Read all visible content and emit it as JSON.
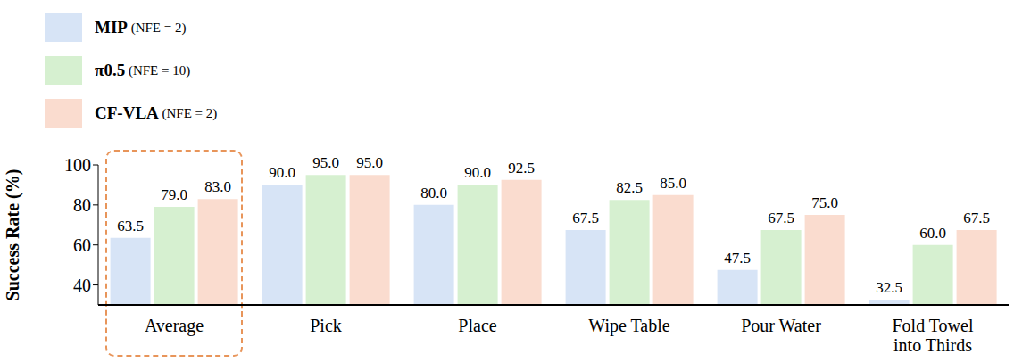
{
  "chart_data": {
    "type": "bar",
    "ylabel": "Success Rate (%)",
    "categories": [
      "Average",
      "Pick",
      "Place",
      "Wipe Table",
      "Pour Water",
      "Fold Towel into Thirds"
    ],
    "series": [
      {
        "name": "MIP (NFE = 2)",
        "color": "#d7e4f6",
        "values": [
          63.5,
          90,
          80,
          67.5,
          47.5,
          32.5
        ],
        "value_labels": [
          "63.5",
          "90.0",
          "80.0",
          "67.5",
          "47.5",
          "32.5"
        ]
      },
      {
        "name": "π0.5 (NFE = 10)",
        "color": "#d6f0d0",
        "values": [
          79,
          95,
          90,
          82.5,
          67.5,
          60
        ],
        "value_labels": [
          "79.0",
          "95.0",
          "90.0",
          "82.5",
          "67.5",
          "60.0"
        ]
      },
      {
        "name": "CF-VLA (NFE = 2)",
        "color": "#fadccf",
        "values": [
          83,
          95,
          92.5,
          85,
          75,
          67.5
        ],
        "value_labels": [
          "83.0",
          "95.0",
          "92.5",
          "85.0",
          "75.0",
          "67.5"
        ]
      }
    ],
    "ylim": [
      30,
      100
    ],
    "yticks": [
      40,
      60,
      80,
      100
    ],
    "grid": false,
    "data_labels": true,
    "legend": "top-left"
  }
}
